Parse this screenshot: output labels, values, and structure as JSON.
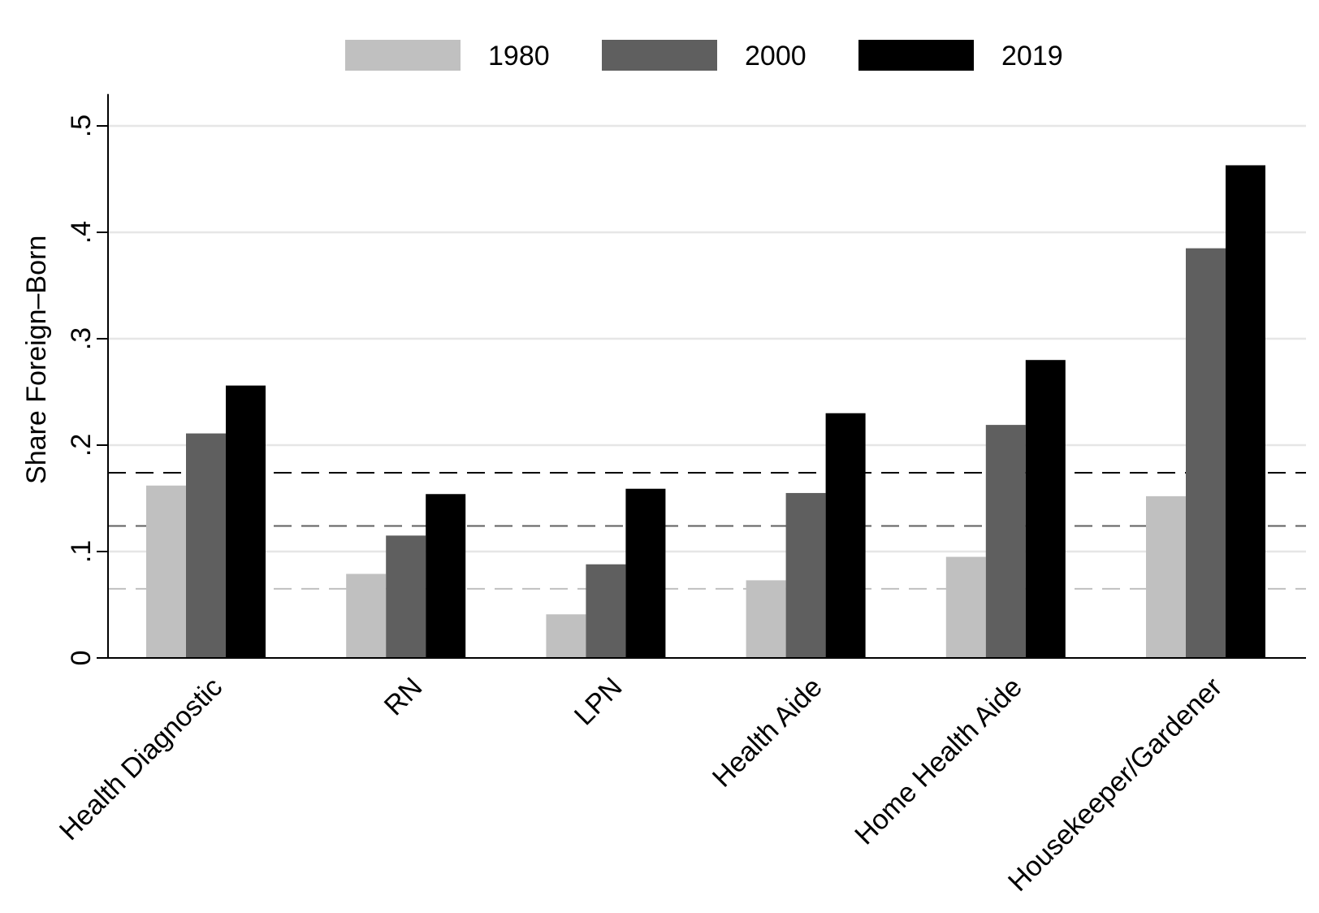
{
  "chart_data": {
    "type": "bar",
    "title": "",
    "xlabel": "",
    "ylabel": "Share Foreign–Born",
    "ylim": [
      0,
      0.53
    ],
    "yticks": [
      0,
      0.1,
      0.2,
      0.3,
      0.4,
      0.5
    ],
    "ytick_labels": [
      "0",
      ".1",
      ".2",
      ".3",
      ".4",
      ".5"
    ],
    "grid": true,
    "legend_position": "top",
    "categories": [
      "Health Diagnostic",
      "RN",
      "LPN",
      "Health Aide",
      "Home Health Aide",
      "Housekeeper/Gardener"
    ],
    "series": [
      {
        "name": "1980",
        "color": "#c0c0c0",
        "values": [
          0.162,
          0.079,
          0.041,
          0.073,
          0.095,
          0.152
        ]
      },
      {
        "name": "2000",
        "color": "#5f5f5f",
        "values": [
          0.211,
          0.115,
          0.088,
          0.155,
          0.219,
          0.385
        ]
      },
      {
        "name": "2019",
        "color": "#000000",
        "values": [
          0.256,
          0.154,
          0.159,
          0.23,
          0.28,
          0.463
        ]
      }
    ],
    "reference_lines": [
      {
        "series": "1980",
        "value": 0.065,
        "color": "#c0c0c0",
        "style": "dashed"
      },
      {
        "series": "2000",
        "value": 0.124,
        "color": "#5f5f5f",
        "style": "dashed"
      },
      {
        "series": "2019",
        "value": 0.174,
        "color": "#000000",
        "style": "dashed"
      }
    ]
  }
}
